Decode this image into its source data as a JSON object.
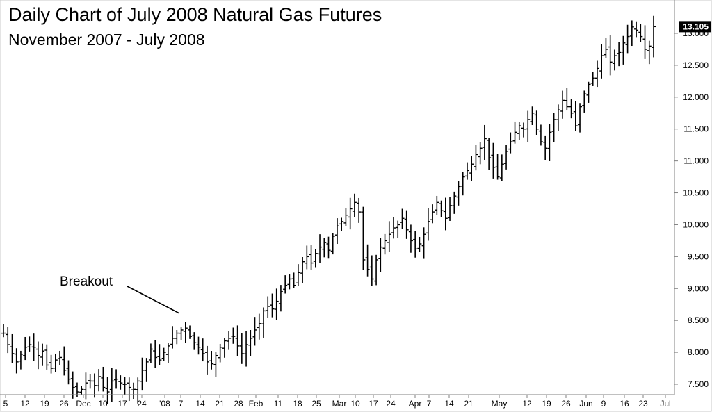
{
  "chart_data": {
    "type": "ohlc",
    "title": "Daily Chart of July 2008 Natural Gas Futures",
    "subtitle": "November 2007 - July 2008",
    "ylim": [
      7.3,
      13.35
    ],
    "y_ticks": [
      "7.500",
      "8.000",
      "8.500",
      "9.000",
      "9.500",
      "10.000",
      "10.500",
      "11.000",
      "11.500",
      "12.000",
      "12.500",
      "13.000"
    ],
    "x_ticks": [
      "5",
      "12",
      "19",
      "26",
      "Dec",
      "10",
      "17",
      "24",
      "'08",
      "7",
      "14",
      "21",
      "28",
      "Feb",
      "11",
      "18",
      "25",
      "Mar",
      "10",
      "17",
      "24",
      "Apr",
      "7",
      "14",
      "21",
      "May",
      "12",
      "19",
      "26",
      "Jun",
      "9",
      "16",
      "23",
      "Jul"
    ],
    "last_price": "13.105",
    "annotation": "Breakout",
    "colors": {
      "bars": "#000000",
      "axis": "#808080",
      "price_badge": "#000000"
    },
    "closes": [
      8.3,
      8.12,
      7.98,
      7.85,
      7.97,
      8.08,
      8.12,
      8.08,
      7.95,
      8.02,
      7.8,
      7.75,
      7.88,
      7.92,
      7.72,
      7.58,
      7.45,
      7.38,
      7.42,
      7.52,
      7.55,
      7.48,
      7.62,
      7.45,
      7.38,
      7.55,
      7.58,
      7.52,
      7.5,
      7.45,
      7.42,
      7.55,
      7.72,
      7.85,
      8.05,
      7.92,
      7.88,
      8.0,
      8.1,
      8.22,
      8.3,
      8.35,
      8.38,
      8.25,
      8.15,
      8.08,
      7.98,
      7.85,
      7.82,
      7.95,
      8.08,
      8.18,
      8.22,
      8.25,
      8.1,
      7.98,
      8.12,
      8.22,
      8.35,
      8.45,
      8.65,
      8.72,
      8.68,
      8.8,
      8.95,
      9.05,
      9.15,
      9.05,
      9.25,
      9.42,
      9.5,
      9.4,
      9.55,
      9.65,
      9.72,
      9.6,
      9.82,
      9.98,
      10.05,
      10.15,
      10.25,
      10.35,
      10.2,
      9.45,
      9.3,
      9.15,
      9.45,
      9.65,
      9.75,
      9.85,
      9.95,
      10.0,
      10.1,
      9.92,
      9.75,
      9.62,
      9.7,
      9.85,
      10.05,
      10.2,
      10.35,
      10.22,
      10.1,
      10.3,
      10.45,
      10.6,
      10.75,
      10.85,
      10.95,
      11.1,
      11.2,
      11.35,
      11.05,
      10.9,
      10.75,
      10.95,
      11.15,
      11.3,
      11.45,
      11.55,
      11.5,
      11.65,
      11.75,
      11.5,
      11.3,
      11.2,
      11.45,
      11.65,
      11.8,
      11.95,
      11.85,
      11.75,
      11.55,
      11.85,
      12.05,
      12.2,
      12.3,
      12.45,
      12.65,
      12.75,
      12.55,
      12.65,
      12.7,
      12.85,
      12.95,
      13.1,
      13.05,
      12.95,
      12.75,
      12.8,
      13.105
    ],
    "breakout_line": {
      "from": {
        "bar": 44,
        "y": 8.95
      },
      "to": {
        "bar": 60,
        "y": 8.6
      }
    }
  }
}
